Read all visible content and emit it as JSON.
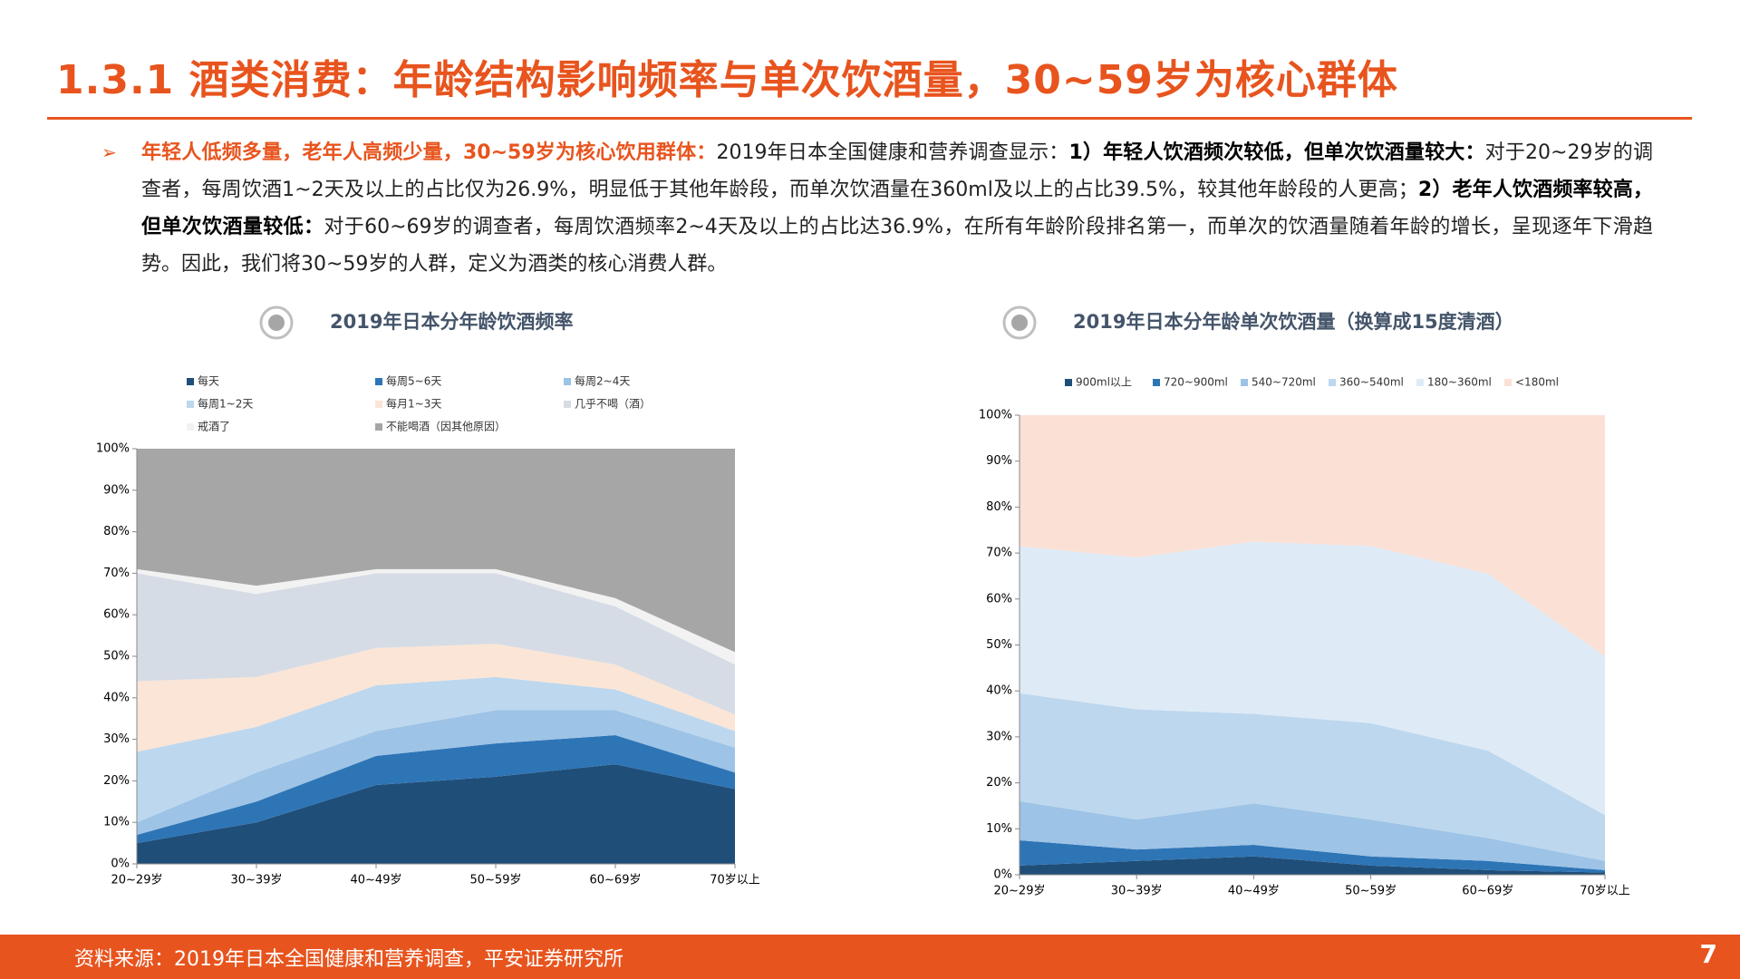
{
  "header": {
    "title": "1.3.1 酒类消费：年龄结构影响频率与单次饮酒量，30~59岁为核心群体"
  },
  "body": {
    "runs": [
      {
        "text": "年轻人低频多量，老年人高频少量，30~59岁为核心饮用群体：",
        "style": "highlight"
      },
      {
        "text": "2019年日本全国健康和营养调查显示：",
        "style": "normal"
      },
      {
        "text": "1）年轻人饮酒频次较低，但单次饮酒量较大：",
        "style": "bold"
      },
      {
        "text": "对于20~29岁的调查者，每周饮酒1~2天及以上的占比仅为26.9%，明显低于其他年龄段，而单次饮酒量在360ml及以上的占比39.5%，较其他年龄段的人更高；",
        "style": "normal"
      },
      {
        "text": "2）老年人饮酒频率较高，但单次饮酒量较低：",
        "style": "bold"
      },
      {
        "text": "对于60~69岁的调查者，每周饮酒频率2~4天及以上的占比达36.9%，在所有年龄阶段排名第一，而单次的饮酒量随着年龄的增长，呈现逐年下滑趋势。因此，我们将30~59岁的人群，定义为酒类的核心消费人群。",
        "style": "normal"
      }
    ]
  },
  "chart_data": [
    {
      "type": "stacked-area",
      "title": "2019年日本分年龄饮酒频率",
      "categories": [
        "20~29岁",
        "30~39岁",
        "40~49岁",
        "50~59岁",
        "60~69岁",
        "70岁以上"
      ],
      "ylim": [
        0,
        100
      ],
      "yticks": [
        {
          "value": 0,
          "label": "0%"
        },
        {
          "value": 10,
          "label": "10%"
        },
        {
          "value": 20,
          "label": "20%"
        },
        {
          "value": 30,
          "label": "30%"
        },
        {
          "value": 40,
          "label": "40%"
        },
        {
          "value": 50,
          "label": "50%"
        },
        {
          "value": 60,
          "label": "60%"
        },
        {
          "value": 70,
          "label": "70%"
        },
        {
          "value": 80,
          "label": "80%"
        },
        {
          "value": 90,
          "label": "90%"
        },
        {
          "value": 100,
          "label": "100%"
        }
      ],
      "series": [
        {
          "name": "每天",
          "color": "#1f4e79",
          "values": [
            5,
            10,
            19,
            21,
            24,
            18
          ]
        },
        {
          "name": "每周5~6天",
          "color": "#2e75b6",
          "values": [
            2,
            5,
            7,
            8,
            7,
            4
          ]
        },
        {
          "name": "每周2~4天",
          "color": "#9dc3e6",
          "values": [
            3,
            7,
            6,
            8,
            6,
            6
          ]
        },
        {
          "name": "每周1~2天",
          "color": "#bdd7ee",
          "values": [
            17,
            11,
            11,
            8,
            5,
            4
          ]
        },
        {
          "name": "每月1~3天",
          "color": "#fbe5d6",
          "values": [
            17,
            12,
            9,
            8,
            6,
            4
          ]
        },
        {
          "name": "几乎不喝（酒）",
          "color": "#d6dce5",
          "values": [
            26,
            20,
            18,
            17,
            14,
            12
          ]
        },
        {
          "name": "戒酒了",
          "color": "#f2f2f2",
          "values": [
            1,
            2,
            1,
            1,
            2,
            3
          ]
        },
        {
          "name": "不能喝酒（因其他原因）",
          "color": "#a6a6a6",
          "values": [
            29,
            33,
            29,
            29,
            36,
            49
          ]
        }
      ]
    },
    {
      "type": "stacked-area",
      "title": "2019年日本分年龄单次饮酒量（换算成15度清酒）",
      "categories": [
        "20~29岁",
        "30~39岁",
        "40~49岁",
        "50~59岁",
        "60~69岁",
        "70岁以上"
      ],
      "ylim": [
        0,
        100
      ],
      "yticks": [
        {
          "value": 0,
          "label": "0%"
        },
        {
          "value": 10,
          "label": "10%"
        },
        {
          "value": 20,
          "label": "20%"
        },
        {
          "value": 30,
          "label": "30%"
        },
        {
          "value": 40,
          "label": "40%"
        },
        {
          "value": 50,
          "label": "50%"
        },
        {
          "value": 60,
          "label": "60%"
        },
        {
          "value": 70,
          "label": "70%"
        },
        {
          "value": 80,
          "label": "80%"
        },
        {
          "value": 90,
          "label": "90%"
        },
        {
          "value": 100,
          "label": "100%"
        }
      ],
      "series": [
        {
          "name": "900ml以上",
          "color": "#1f4e79",
          "values": [
            2,
            3,
            4,
            2,
            1,
            0.5
          ]
        },
        {
          "name": "720~900ml",
          "color": "#2e75b6",
          "values": [
            5.5,
            2.5,
            2.5,
            2,
            2,
            0.5
          ]
        },
        {
          "name": "540~720ml",
          "color": "#9dc3e6",
          "values": [
            8.5,
            6.5,
            9,
            8,
            5,
            2
          ]
        },
        {
          "name": "360~540ml",
          "color": "#bdd7ee",
          "values": [
            23.5,
            24,
            19.5,
            21,
            19,
            10
          ]
        },
        {
          "name": "180~360ml",
          "color": "#deebf7",
          "values": [
            32,
            33,
            37.5,
            38.5,
            38.5,
            34.5
          ]
        },
        {
          "name": "<180ml",
          "color": "#fbe0d5",
          "values": [
            28.5,
            31,
            27.5,
            28.5,
            34.5,
            52.5
          ]
        }
      ]
    }
  ],
  "footer": {
    "source": "资料来源：2019年日本全国健康和营养调查，平安证券研究所",
    "page": "7"
  }
}
